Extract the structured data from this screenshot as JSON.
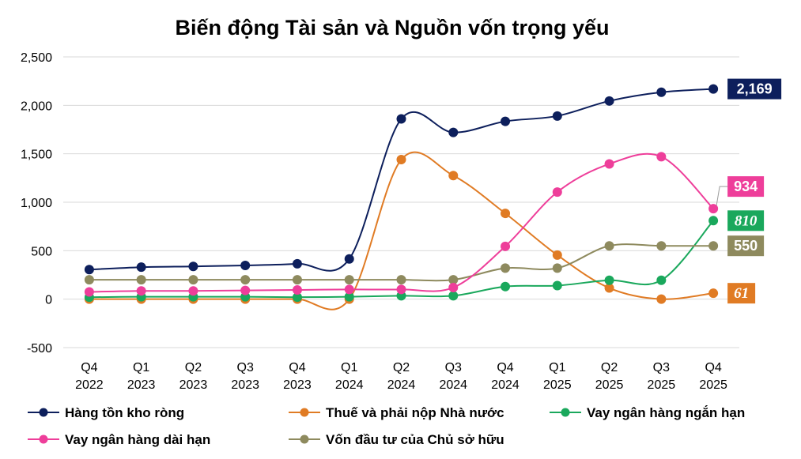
{
  "chart_data": {
    "type": "line",
    "title": "Biến động Tài sản và Nguồn vốn trọng yếu",
    "categories": [
      [
        "Q4",
        "2022"
      ],
      [
        "Q1",
        "2023"
      ],
      [
        "Q2",
        "2023"
      ],
      [
        "Q3",
        "2023"
      ],
      [
        "Q4",
        "2023"
      ],
      [
        "Q1",
        "2024"
      ],
      [
        "Q2",
        "2024"
      ],
      [
        "Q3",
        "2024"
      ],
      [
        "Q4",
        "2024"
      ],
      [
        "Q1",
        "2025"
      ],
      [
        "Q2",
        "2025"
      ],
      [
        "Q3",
        "2025"
      ],
      [
        "Q4",
        "2025"
      ]
    ],
    "ylim": [
      -500,
      2500
    ],
    "yticks": [
      -500,
      0,
      500,
      1000,
      1500,
      2000,
      2500
    ],
    "ytick_labels": [
      "-500",
      "0",
      "500",
      "1,000",
      "1,500",
      "2,000",
      "2,500"
    ],
    "grid": "horizontal",
    "legend_position": "bottom",
    "series": [
      {
        "name": "Hàng tồn kho ròng",
        "color": "#0d1f5c",
        "values": [
          305,
          330,
          338,
          348,
          365,
          415,
          1860,
          1720,
          1835,
          1890,
          2045,
          2135,
          2169
        ],
        "end_label": "2,169",
        "end_label_italic": false
      },
      {
        "name": "Thuế và phải nộp Nhà nước",
        "color": "#e07b24",
        "values": [
          0,
          0,
          0,
          0,
          0,
          0,
          1440,
          1275,
          885,
          455,
          115,
          0,
          61
        ],
        "end_label": "61",
        "end_label_italic": true
      },
      {
        "name": "Vay ngân hàng ngắn hạn",
        "color": "#1aa85c",
        "values": [
          20,
          25,
          25,
          25,
          20,
          25,
          35,
          35,
          130,
          140,
          195,
          195,
          810
        ],
        "end_label": "810",
        "end_label_italic": true
      },
      {
        "name": "Vay ngân hàng dài hạn",
        "color": "#ee3e9a",
        "values": [
          75,
          85,
          85,
          90,
          95,
          100,
          100,
          120,
          545,
          1105,
          1395,
          1470,
          934
        ],
        "end_label": "934",
        "end_label_italic": false
      },
      {
        "name": "Vốn đầu tư của Chủ sở hữu",
        "color": "#8e8a5e",
        "values": [
          200,
          200,
          200,
          200,
          200,
          200,
          200,
          200,
          320,
          320,
          550,
          550,
          550
        ],
        "end_label": "550",
        "end_label_italic": false
      }
    ]
  }
}
